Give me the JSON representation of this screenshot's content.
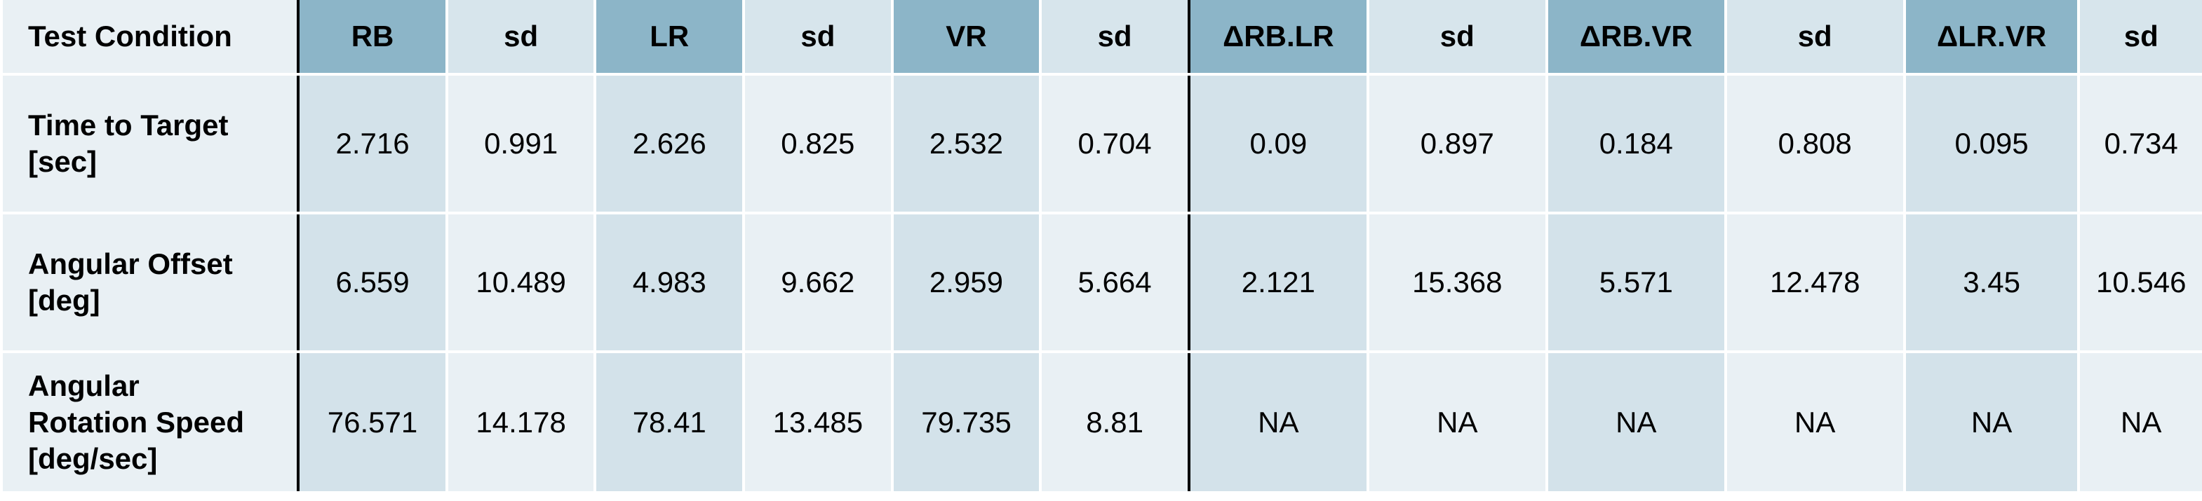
{
  "table": {
    "headers": [
      "Test Condition",
      "RB",
      "sd",
      "LR",
      "sd",
      "VR",
      "sd",
      "ΔRB.LR",
      "sd",
      "ΔRB.VR",
      "sd",
      "ΔLR.VR",
      "sd"
    ],
    "rows": [
      {
        "condition_line1": "Time to Target",
        "condition_line2": "[sec]",
        "condition_line3": "",
        "values": [
          "2.716",
          "0.991",
          "2.626",
          "0.825",
          "2.532",
          "0.704",
          "0.09",
          "0.897",
          "0.184",
          "0.808",
          "0.095",
          "0.734"
        ]
      },
      {
        "condition_line1": "Angular Offset",
        "condition_line2": "[deg]",
        "condition_line3": "",
        "values": [
          "6.559",
          "10.489",
          "4.983",
          "9.662",
          "2.959",
          "5.664",
          "2.121",
          "15.368",
          "5.571",
          "12.478",
          "3.45",
          "10.546"
        ]
      },
      {
        "condition_line1": "Angular",
        "condition_line2": "Rotation Speed",
        "condition_line3": "[deg/sec]",
        "values": [
          "76.571",
          "14.178",
          "78.41",
          "13.485",
          "79.735",
          "8.81",
          "NA",
          "NA",
          "NA",
          "NA",
          "NA",
          "NA"
        ]
      }
    ]
  }
}
